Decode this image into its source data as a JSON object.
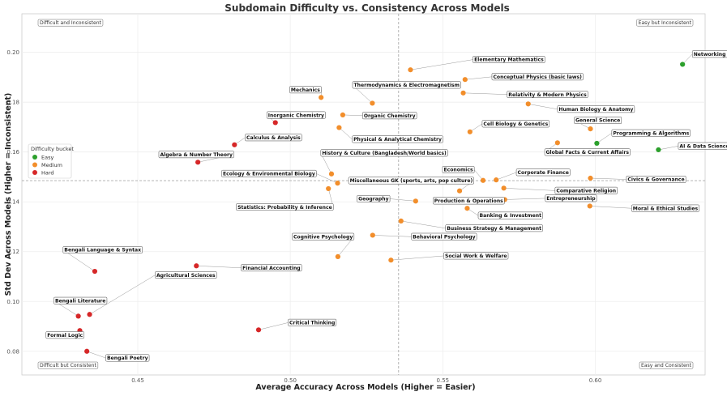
{
  "chart_data": {
    "type": "scatter",
    "title": "Subdomain Difficulty vs. Consistency Across Models",
    "xlabel": "Average Accuracy Across Models (Higher = Easier)",
    "ylabel": "Std Dev Across Models (Higher = Inconsistent)",
    "xlim": [
      0.412,
      0.636
    ],
    "ylim": [
      0.0705,
      0.2155
    ],
    "xticks": [
      0.45,
      0.5,
      0.55,
      0.6
    ],
    "xtick_labels": [
      "0.45",
      "0.50",
      "0.55",
      "0.60"
    ],
    "yticks": [
      0.08,
      0.1,
      0.12,
      0.14,
      0.16,
      0.18,
      0.2
    ],
    "ytick_labels": [
      "0.08",
      "0.10",
      "0.12",
      "0.14",
      "0.16",
      "0.18",
      "0.20"
    ],
    "grid": true,
    "reference_lines": {
      "x": 0.5355,
      "y": 0.1485
    },
    "legend": {
      "title": "Difficulty bucket",
      "placement": "center-left",
      "items": [
        {
          "name": "Easy",
          "color": "#2ca02c"
        },
        {
          "name": "Medium",
          "color": "#f28e2b"
        },
        {
          "name": "Hard",
          "color": "#d62728"
        }
      ]
    },
    "quadrant_labels": {
      "top_left": "Difficult and Inconsistent",
      "top_right": "Easy but Inconsistent",
      "bottom_left": "Difficult but Consistent",
      "bottom_right": "Easy and Consistent"
    },
    "points": [
      {
        "label": "Networking & Security",
        "x": 0.6286,
        "y": 0.1952,
        "bucket": "Easy",
        "lx": 0.6322,
        "ly": 0.1993
      },
      {
        "label": "AI & Data Science Basics",
        "x": 0.6207,
        "y": 0.1609,
        "bucket": "Easy",
        "lx": 0.6276,
        "ly": 0.1624
      },
      {
        "label": "Programming & Algorithms",
        "x": 0.6005,
        "y": 0.1635,
        "bucket": "Easy",
        "lx": 0.6058,
        "ly": 0.1676
      },
      {
        "label": "Elementary Mathematics",
        "x": 0.5394,
        "y": 0.193,
        "bucket": "Medium",
        "lx": 0.5603,
        "ly": 0.1971
      },
      {
        "label": "Conceptual Physics (basic laws)",
        "x": 0.5573,
        "y": 0.1891,
        "bucket": "Medium",
        "lx": 0.5665,
        "ly": 0.1902
      },
      {
        "label": "Relativity & Modern Physics",
        "x": 0.5567,
        "y": 0.1837,
        "bucket": "Medium",
        "lx": 0.5715,
        "ly": 0.1831
      },
      {
        "label": "Human Biology & Anatomy",
        "x": 0.578,
        "y": 0.1793,
        "bucket": "Medium",
        "lx": 0.588,
        "ly": 0.1772
      },
      {
        "label": "Mechanics",
        "x": 0.5101,
        "y": 0.1819,
        "bucket": "Medium",
        "lx": 0.5002,
        "ly": 0.185
      },
      {
        "label": "Thermodynamics & Electromagnetism",
        "x": 0.5269,
        "y": 0.1796,
        "bucket": "Medium",
        "lx": 0.5208,
        "ly": 0.1869
      },
      {
        "label": "Organic Chemistry",
        "x": 0.5172,
        "y": 0.1749,
        "bucket": "Medium",
        "lx": 0.5241,
        "ly": 0.1746
      },
      {
        "label": "Inorganic Chemistry",
        "x": 0.4951,
        "y": 0.1718,
        "bucket": "Hard",
        "lx": 0.4927,
        "ly": 0.1748
      },
      {
        "label": "Physical & Analytical Chemistry",
        "x": 0.516,
        "y": 0.1698,
        "bucket": "Medium",
        "lx": 0.5207,
        "ly": 0.1651
      },
      {
        "label": "Cell Biology & Genetics",
        "x": 0.5589,
        "y": 0.1681,
        "bucket": "Medium",
        "lx": 0.5633,
        "ly": 0.1713
      },
      {
        "label": "General Science",
        "x": 0.5984,
        "y": 0.1693,
        "bucket": "Medium",
        "lx": 0.5935,
        "ly": 0.1727
      },
      {
        "label": "Global Facts & Current Affairs",
        "x": 0.5876,
        "y": 0.1637,
        "bucket": "Medium",
        "lx": 0.5838,
        "ly": 0.1599
      },
      {
        "label": "Calculus & Analysis",
        "x": 0.4817,
        "y": 0.1629,
        "bucket": "Hard",
        "lx": 0.4856,
        "ly": 0.1658
      },
      {
        "label": "Algebra & Number Theory",
        "x": 0.4697,
        "y": 0.1559,
        "bucket": "Hard",
        "lx": 0.4573,
        "ly": 0.159
      },
      {
        "label": "History & Culture (Bangladesh/World basics)",
        "x": 0.5135,
        "y": 0.1512,
        "bucket": "Medium",
        "lx": 0.5104,
        "ly": 0.1596
      },
      {
        "label": "Ecology & Environmental Biology",
        "x": 0.5155,
        "y": 0.1475,
        "bucket": "Medium",
        "lx": 0.4779,
        "ly": 0.1513
      },
      {
        "label": "Economics",
        "x": 0.5632,
        "y": 0.1486,
        "bucket": "Medium",
        "lx": 0.5503,
        "ly": 0.1529
      },
      {
        "label": "Corporate Finance",
        "x": 0.5675,
        "y": 0.1488,
        "bucket": "Medium",
        "lx": 0.5745,
        "ly": 0.1518
      },
      {
        "label": "Civics & Governance",
        "x": 0.5984,
        "y": 0.1495,
        "bucket": "Medium",
        "lx": 0.6106,
        "ly": 0.149
      },
      {
        "label": "Miscellaneous GK (sports, arts, pop culture)",
        "x": 0.5555,
        "y": 0.1444,
        "bucket": "Medium",
        "lx": 0.5195,
        "ly": 0.1485
      },
      {
        "label": "Comparative Religion",
        "x": 0.57,
        "y": 0.1455,
        "bucket": "Medium",
        "lx": 0.5872,
        "ly": 0.1445
      },
      {
        "label": "Statistics: Probability & Inference",
        "x": 0.5125,
        "y": 0.1453,
        "bucket": "Medium",
        "lx": 0.4827,
        "ly": 0.1379
      },
      {
        "label": "Geography",
        "x": 0.5411,
        "y": 0.1403,
        "bucket": "Medium",
        "lx": 0.5223,
        "ly": 0.1412
      },
      {
        "label": "Production & Operations",
        "x": 0.5573,
        "y": 0.1406,
        "bucket": "Medium",
        "lx": 0.5472,
        "ly": 0.1404
      },
      {
        "label": "Entrepreneurship",
        "x": 0.5703,
        "y": 0.1409,
        "bucket": "Medium",
        "lx": 0.584,
        "ly": 0.1414
      },
      {
        "label": "Banking & Investment",
        "x": 0.558,
        "y": 0.1374,
        "bucket": "Medium",
        "lx": 0.562,
        "ly": 0.1345
      },
      {
        "label": "Moral & Ethical Studies",
        "x": 0.5982,
        "y": 0.1383,
        "bucket": "Medium",
        "lx": 0.6123,
        "ly": 0.1374
      },
      {
        "label": "Business Strategy & Management",
        "x": 0.5363,
        "y": 0.1323,
        "bucket": "Medium",
        "lx": 0.5513,
        "ly": 0.1294
      },
      {
        "label": "Behavioral Psychology",
        "x": 0.527,
        "y": 0.1266,
        "bucket": "Medium",
        "lx": 0.5401,
        "ly": 0.126
      },
      {
        "label": "Cognitive Psychology",
        "x": 0.5156,
        "y": 0.118,
        "bucket": "Medium",
        "lx": 0.501,
        "ly": 0.126
      },
      {
        "label": "Social Work & Welfare",
        "x": 0.533,
        "y": 0.1166,
        "bucket": "Medium",
        "lx": 0.5507,
        "ly": 0.1183
      },
      {
        "label": "Bengali Language & Syntax",
        "x": 0.4359,
        "y": 0.1121,
        "bucket": "Hard",
        "lx": 0.4259,
        "ly": 0.1207
      },
      {
        "label": "Financial Accounting",
        "x": 0.4692,
        "y": 0.1143,
        "bucket": "Hard",
        "lx": 0.4843,
        "ly": 0.1135
      },
      {
        "label": "Agricultural Sciences",
        "x": 0.4342,
        "y": 0.0948,
        "bucket": "Hard",
        "lx": 0.4561,
        "ly": 0.1106
      },
      {
        "label": "Bengali Literature",
        "x": 0.4305,
        "y": 0.0941,
        "bucket": "Hard",
        "lx": 0.4229,
        "ly": 0.1003
      },
      {
        "label": "Critical Thinking",
        "x": 0.4896,
        "y": 0.0886,
        "bucket": "Hard",
        "lx": 0.4997,
        "ly": 0.0915
      },
      {
        "label": "Formal Logic",
        "x": 0.431,
        "y": 0.0883,
        "bucket": "Hard",
        "lx": 0.4203,
        "ly": 0.0865
      },
      {
        "label": "Bengali Poetry",
        "x": 0.4333,
        "y": 0.08,
        "bucket": "Hard",
        "lx": 0.4399,
        "ly": 0.0773
      }
    ]
  }
}
